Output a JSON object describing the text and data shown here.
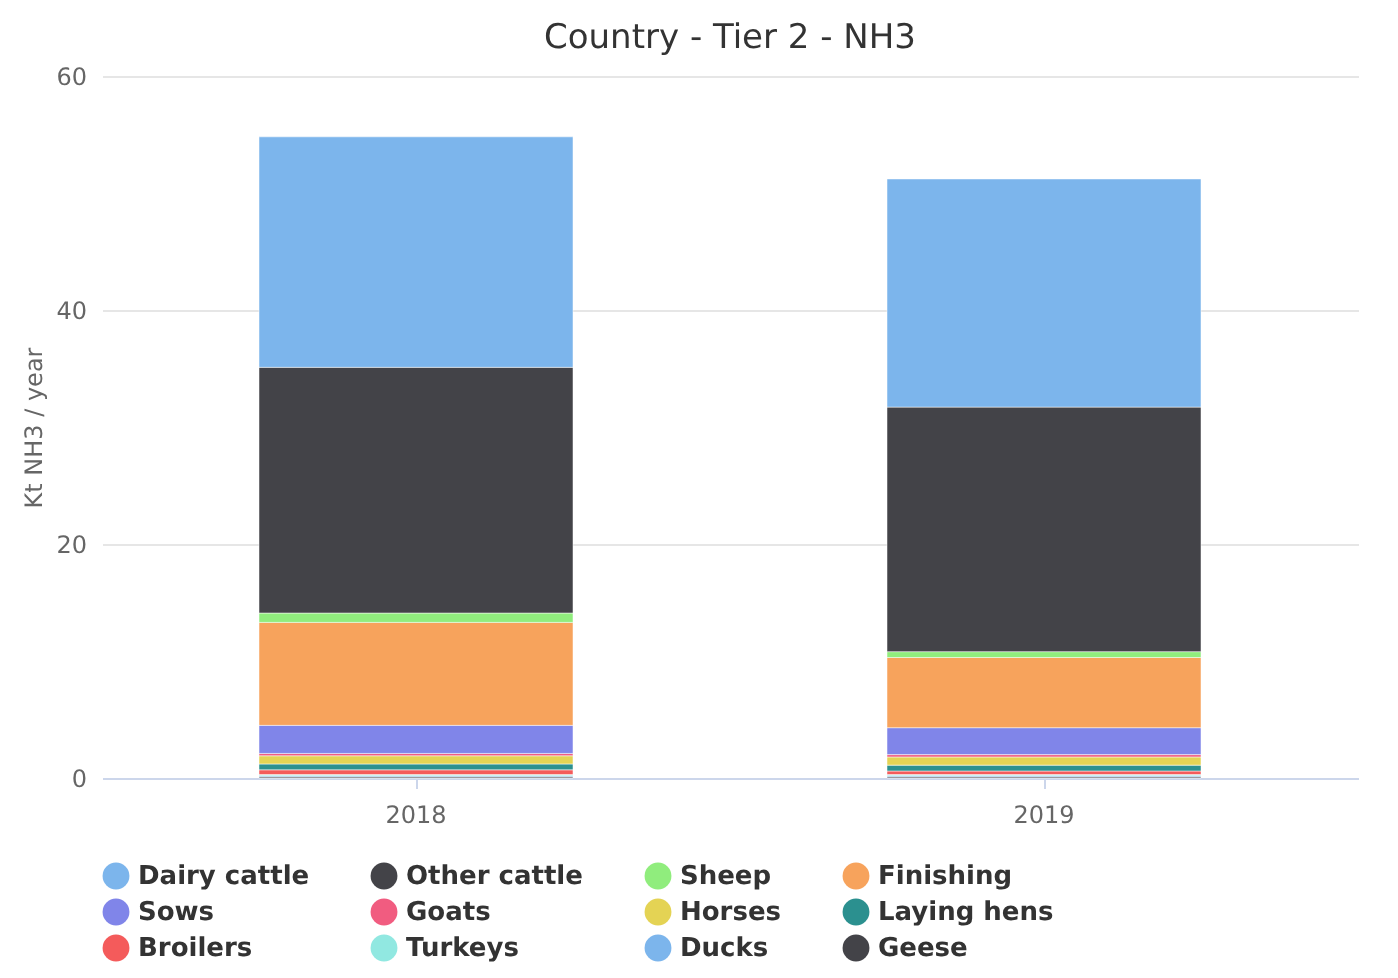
{
  "chart_data": {
    "type": "bar",
    "title": "Country - Tier 2 - NH3",
    "ylabel": "Kt NH3 / year",
    "categories": [
      "2018",
      "2019"
    ],
    "stacked": true,
    "ylim": [
      0,
      60
    ],
    "yticks": [
      0,
      20,
      40,
      60
    ],
    "grid": "y",
    "legend": "bottom",
    "marker": "circle",
    "series": [
      {
        "name": "Geese",
        "color": "#434348",
        "values": [
          0.1,
          0.1
        ]
      },
      {
        "name": "Ducks",
        "color": "#7cb5ec",
        "values": [
          0.1,
          0.1
        ]
      },
      {
        "name": "Turkeys",
        "color": "#91e8e1",
        "values": [
          0.1,
          0.1
        ]
      },
      {
        "name": "Broilers",
        "color": "#f45b5b",
        "values": [
          0.4,
          0.3
        ]
      },
      {
        "name": "Laying hens",
        "color": "#2b908f",
        "values": [
          0.5,
          0.5
        ]
      },
      {
        "name": "Horses",
        "color": "#e4d354",
        "values": [
          0.7,
          0.7
        ]
      },
      {
        "name": "Goats",
        "color": "#f15c80",
        "values": [
          0.2,
          0.2
        ]
      },
      {
        "name": "Sows",
        "color": "#8085e9",
        "values": [
          2.4,
          2.3
        ]
      },
      {
        "name": "Finishing",
        "color": "#f7a35c",
        "values": [
          8.8,
          6.0
        ]
      },
      {
        "name": "Sheep",
        "color": "#90ed7d",
        "values": [
          0.8,
          0.5
        ]
      },
      {
        "name": "Other cattle",
        "color": "#434348",
        "values": [
          21.0,
          20.9
        ]
      },
      {
        "name": "Dairy cattle",
        "color": "#7cb5ec",
        "values": [
          19.7,
          19.5
        ]
      }
    ]
  }
}
